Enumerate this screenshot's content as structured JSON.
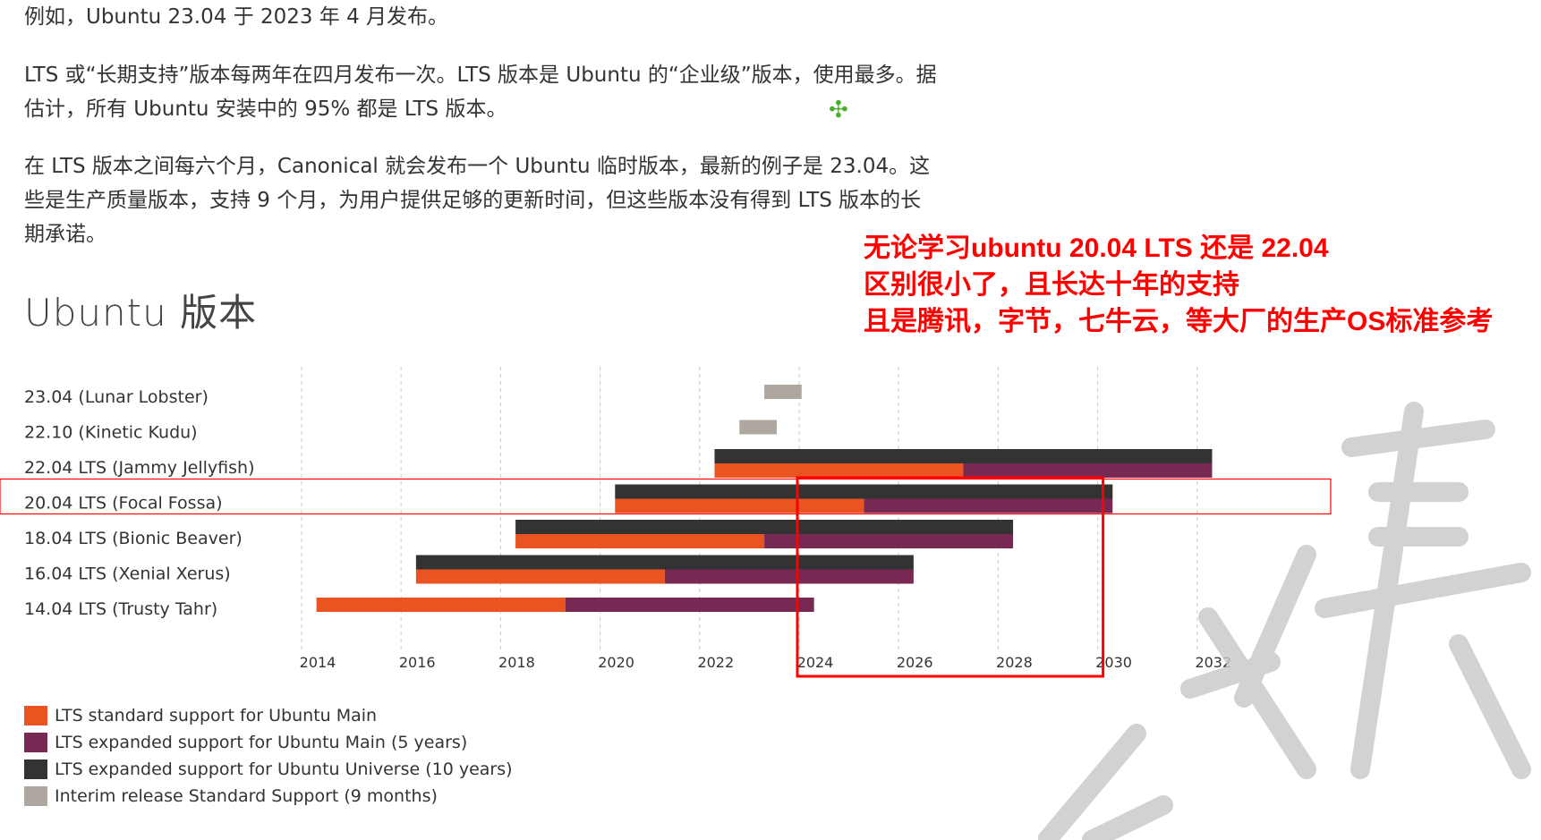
{
  "article": {
    "p0": "例如，Ubuntu 23.04 于 2023 年 4 月发布。",
    "p1": "LTS 或“长期支持”版本每两年在四月发布一次。LTS 版本是 Ubuntu 的“企业级”版本，使用最多。据估计，所有 Ubuntu 安装中的 95% 都是 LTS 版本。",
    "p2": "在 LTS 版本之间每六个月，Canonical 就会发布一个 Ubuntu 临时版本，最新的例子是 23.04。这些是生产质量版本，支持 9 个月，为用户提供足够的更新时间，但这些版本没有得到 LTS 版本的长期承诺。",
    "heading": "Ubuntu 版本"
  },
  "annotation": {
    "line1": "无论学习ubuntu 20.04 LTS 还是 22.04",
    "line2": "区别很小了，且长达十年的支持",
    "line3": "且是腾讯，字节，七牛云，等大厂的生产OS标准参考"
  },
  "colors": {
    "standard": "#e95420",
    "expanded_main": "#772953",
    "expanded_universe": "#333333",
    "interim": "#aea79f",
    "annotation": "#ff0000",
    "gridline": "#cccccc"
  },
  "chart_data": {
    "type": "bar",
    "orientation": "horizontal-timeline",
    "xlim": [
      2014,
      2032
    ],
    "x_ticks": [
      "2014",
      "2016",
      "2018",
      "2020",
      "2022",
      "2024",
      "2026",
      "2028",
      "2030",
      "2032"
    ],
    "grid": true,
    "legend_placement": "bottom-left",
    "releases": [
      {
        "label": "23.04 (Lunar Lobster)",
        "interim": [
          2023.3,
          2024.05
        ]
      },
      {
        "label": "22.10 (Kinetic Kudu)",
        "interim": [
          2022.8,
          2023.55
        ]
      },
      {
        "label": "22.04 LTS (Jammy Jellyfish)",
        "standard": [
          2022.3,
          2027.3
        ],
        "expanded_main": [
          2027.3,
          2032.3
        ],
        "expanded_universe": [
          2022.3,
          2032.3
        ]
      },
      {
        "label": "20.04 LTS (Focal Fossa)",
        "standard": [
          2020.3,
          2025.3
        ],
        "expanded_main": [
          2025.3,
          2030.3
        ],
        "expanded_universe": [
          2020.3,
          2030.3
        ]
      },
      {
        "label": "18.04 LTS (Bionic Beaver)",
        "standard": [
          2018.3,
          2023.3
        ],
        "expanded_main": [
          2023.3,
          2028.3
        ],
        "expanded_universe": [
          2018.3,
          2028.3
        ]
      },
      {
        "label": "16.04 LTS (Xenial Xerus)",
        "standard": [
          2016.3,
          2021.3
        ],
        "expanded_main": [
          2021.3,
          2026.3
        ],
        "expanded_universe": [
          2016.3,
          2026.3
        ]
      },
      {
        "label": "14.04 LTS (Trusty Tahr)",
        "standard": [
          2014.3,
          2019.3
        ],
        "expanded_main": [
          2019.3,
          2024.3
        ]
      }
    ],
    "legend": [
      {
        "key": "standard",
        "label": "LTS standard support for Ubuntu Main"
      },
      {
        "key": "expanded_main",
        "label": "LTS expanded support for Ubuntu Main (5 years)"
      },
      {
        "key": "expanded_universe",
        "label": "LTS expanded support for Ubuntu Universe (10 years)"
      },
      {
        "key": "interim",
        "label": "Interim release Standard Support (9 months)"
      }
    ],
    "highlight_row": "20.04 LTS (Focal Fossa)",
    "highlight_range": [
      2024,
      2030
    ]
  }
}
